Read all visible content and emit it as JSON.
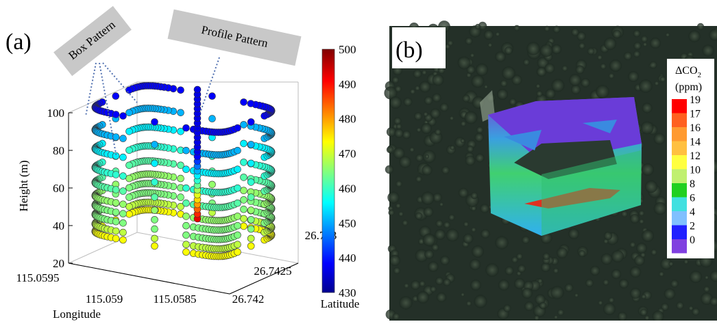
{
  "panel_a": {
    "label": "(a)",
    "callouts": [
      "Box Pattern",
      "Profile Pattern"
    ],
    "z_axis": {
      "label": "Height (m)",
      "ticks": [
        "100",
        "80",
        "60",
        "40",
        "20"
      ]
    },
    "x_axis": {
      "label": "Longitude",
      "ticks": [
        "115.0595",
        "115.059",
        "115.0585"
      ]
    },
    "y_axis": {
      "label": "Latitude",
      "ticks": [
        "26.742",
        "26.7425",
        "26.743"
      ]
    },
    "colorbar_ticks": [
      "500",
      "490",
      "480",
      "470",
      "460",
      "450",
      "440",
      "430"
    ]
  },
  "panel_b": {
    "label": "(b)",
    "legend": {
      "title": "ΔCO",
      "title_sub": "2",
      "unit": "(ppm)",
      "ticks": [
        "19",
        "17",
        "16",
        "14",
        "12",
        "10",
        "8",
        "6",
        "4",
        "2",
        "0"
      ]
    }
  }
}
